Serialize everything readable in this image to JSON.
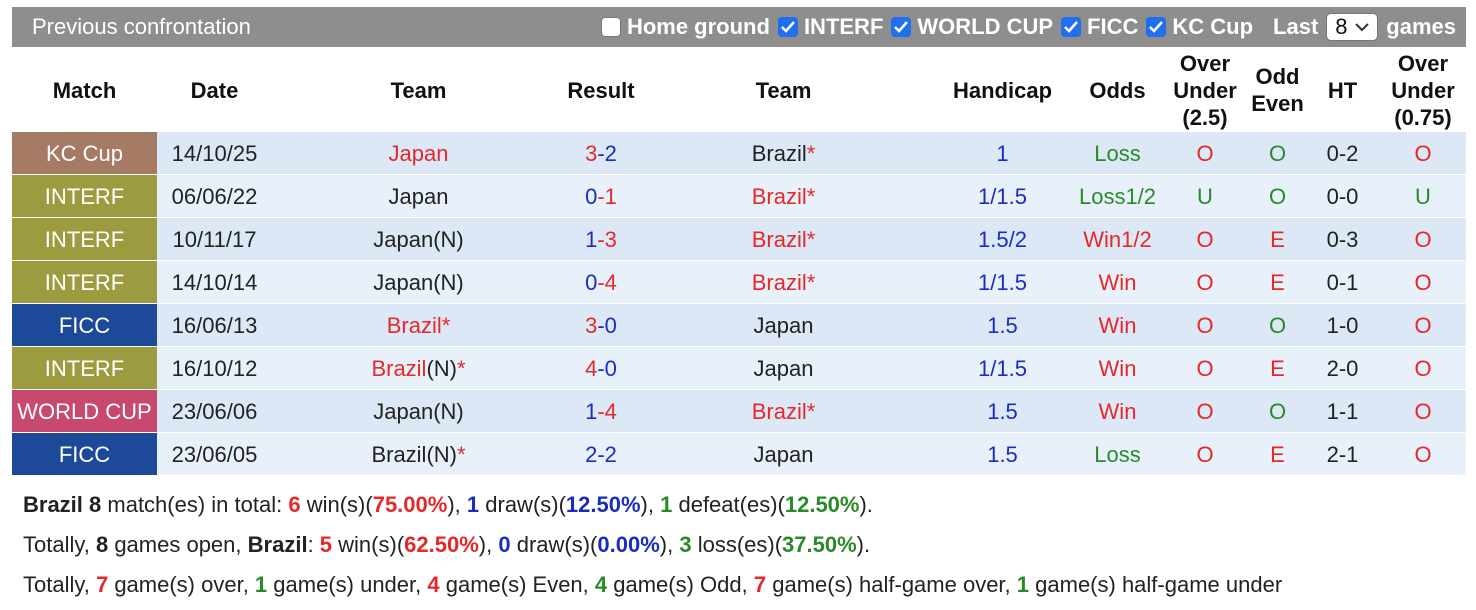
{
  "header": {
    "title": "Previous confrontation",
    "filters": [
      {
        "label": "Home ground",
        "checked": false
      },
      {
        "label": "INTERF",
        "checked": true
      },
      {
        "label": "WORLD CUP",
        "checked": true
      },
      {
        "label": "FICC",
        "checked": true
      },
      {
        "label": "KC Cup",
        "checked": true
      }
    ],
    "last_label": "Last",
    "last_value": "8",
    "games_label": "games"
  },
  "palette": {
    "red": "#e5282a",
    "blue": "#1b2dbf",
    "green": "#2a8a2a",
    "black": "#222222"
  },
  "match_colors": {
    "KC Cup": "#a67b66",
    "INTERF": "#9d9b3f",
    "FICC": "#1d4a98",
    "WORLD CUP": "#c8496f"
  },
  "odds_colors": {
    "Win": "red",
    "Win1/2": "red",
    "Loss": "green",
    "Loss1/2": "green"
  },
  "over_under_colors": {
    "O": "red",
    "U": "green"
  },
  "odd_even_colors": {
    "O": "green",
    "E": "red"
  },
  "table": {
    "columns": [
      "Match",
      "Date",
      "Team",
      "Result",
      "Team",
      "Handicap",
      "Odds",
      "Over Under (2.5)",
      "Odd Even",
      "HT",
      "Over Under (0.75)"
    ],
    "score_sep": "-",
    "rows": [
      {
        "match": "KC Cup",
        "date": "14/10/25",
        "home": {
          "name": "Japan",
          "color": "red"
        },
        "score": [
          "3",
          "2"
        ],
        "score_colors": [
          "red",
          "blue"
        ],
        "away": {
          "name": "Brazil",
          "color": "black",
          "mark": "*"
        },
        "handicap": "1",
        "odds": "Loss",
        "over_under": "O",
        "odd_even": "O",
        "ht": "0-2",
        "ht_over_under": "O"
      },
      {
        "match": "INTERF",
        "date": "06/06/22",
        "home": {
          "name": "Japan",
          "color": "black"
        },
        "score": [
          "0",
          "1"
        ],
        "score_colors": [
          "blue",
          "red"
        ],
        "away": {
          "name": "Brazil",
          "color": "red",
          "mark": "*"
        },
        "handicap": "1/1.5",
        "odds": "Loss1/2",
        "over_under": "U",
        "odd_even": "O",
        "ht": "0-0",
        "ht_over_under": "U"
      },
      {
        "match": "INTERF",
        "date": "10/11/17",
        "home": {
          "name": "Japan(N)",
          "color": "black"
        },
        "score": [
          "1",
          "3"
        ],
        "score_colors": [
          "blue",
          "red"
        ],
        "away": {
          "name": "Brazil",
          "color": "red",
          "mark": "*"
        },
        "handicap": "1.5/2",
        "odds": "Win1/2",
        "over_under": "O",
        "odd_even": "E",
        "ht": "0-3",
        "ht_over_under": "O"
      },
      {
        "match": "INTERF",
        "date": "14/10/14",
        "home": {
          "name": "Japan(N)",
          "color": "black"
        },
        "score": [
          "0",
          "4"
        ],
        "score_colors": [
          "blue",
          "red"
        ],
        "away": {
          "name": "Brazil",
          "color": "red",
          "mark": "*"
        },
        "handicap": "1/1.5",
        "odds": "Win",
        "over_under": "O",
        "odd_even": "E",
        "ht": "0-1",
        "ht_over_under": "O"
      },
      {
        "match": "FICC",
        "date": "16/06/13",
        "home": {
          "name": "Brazil",
          "color": "red",
          "mark": "*"
        },
        "score": [
          "3",
          "0"
        ],
        "score_colors": [
          "red",
          "blue"
        ],
        "away": {
          "name": "Japan",
          "color": "black"
        },
        "handicap": "1.5",
        "odds": "Win",
        "over_under": "O",
        "odd_even": "O",
        "ht": "1-0",
        "ht_over_under": "O"
      },
      {
        "match": "INTERF",
        "date": "16/10/12",
        "home": {
          "name": "Brazil",
          "note": "(N)",
          "color": "red",
          "mark": "*"
        },
        "score": [
          "4",
          "0"
        ],
        "score_colors": [
          "red",
          "blue"
        ],
        "away": {
          "name": "Japan",
          "color": "black"
        },
        "handicap": "1/1.5",
        "odds": "Win",
        "over_under": "O",
        "odd_even": "E",
        "ht": "2-0",
        "ht_over_under": "O"
      },
      {
        "match": "WORLD CUP",
        "date": "23/06/06",
        "home": {
          "name": "Japan(N)",
          "color": "black"
        },
        "score": [
          "1",
          "4"
        ],
        "score_colors": [
          "blue",
          "red"
        ],
        "away": {
          "name": "Brazil",
          "color": "red",
          "mark": "*"
        },
        "handicap": "1.5",
        "odds": "Win",
        "over_under": "O",
        "odd_even": "O",
        "ht": "1-1",
        "ht_over_under": "O"
      },
      {
        "match": "FICC",
        "date": "23/06/05",
        "home": {
          "name": "Brazil(N)",
          "color": "black",
          "mark": "*"
        },
        "score": [
          "2",
          "2"
        ],
        "score_colors": [
          "blue",
          "blue"
        ],
        "away": {
          "name": "Japan",
          "color": "black"
        },
        "handicap": "1.5",
        "odds": "Loss",
        "over_under": "O",
        "odd_even": "E",
        "ht": "2-1",
        "ht_over_under": "O"
      }
    ]
  },
  "summary": [
    [
      {
        "text": "Brazil 8",
        "style": "b"
      },
      {
        "text": " match(es) in total: "
      },
      {
        "text": "6",
        "style": "r"
      },
      {
        "text": " win(s)("
      },
      {
        "text": "75.00%",
        "style": "r"
      },
      {
        "text": "), "
      },
      {
        "text": "1",
        "style": "u"
      },
      {
        "text": " draw(s)("
      },
      {
        "text": "12.50%",
        "style": "u"
      },
      {
        "text": "), "
      },
      {
        "text": "1",
        "style": "g"
      },
      {
        "text": " defeat(es)("
      },
      {
        "text": "12.50%",
        "style": "g"
      },
      {
        "text": ")."
      }
    ],
    [
      {
        "text": "Totally, "
      },
      {
        "text": "8",
        "style": "b"
      },
      {
        "text": " games open, "
      },
      {
        "text": "Brazil",
        "style": "b"
      },
      {
        "text": ": "
      },
      {
        "text": "5",
        "style": "r"
      },
      {
        "text": " win(s)("
      },
      {
        "text": "62.50%",
        "style": "r"
      },
      {
        "text": "), "
      },
      {
        "text": "0",
        "style": "u"
      },
      {
        "text": " draw(s)("
      },
      {
        "text": "0.00%",
        "style": "u"
      },
      {
        "text": "), "
      },
      {
        "text": "3",
        "style": "g"
      },
      {
        "text": " loss(es)("
      },
      {
        "text": "37.50%",
        "style": "g"
      },
      {
        "text": ")."
      }
    ],
    [
      {
        "text": "Totally, "
      },
      {
        "text": "7",
        "style": "r"
      },
      {
        "text": " game(s) over, "
      },
      {
        "text": "1",
        "style": "g"
      },
      {
        "text": " game(s) under, "
      },
      {
        "text": "4",
        "style": "r"
      },
      {
        "text": " game(s) Even, "
      },
      {
        "text": "4",
        "style": "g"
      },
      {
        "text": " game(s) Odd, "
      },
      {
        "text": "7",
        "style": "r"
      },
      {
        "text": " game(s) half-game over, "
      },
      {
        "text": "1",
        "style": "g"
      },
      {
        "text": " game(s) half-game under"
      }
    ]
  ]
}
